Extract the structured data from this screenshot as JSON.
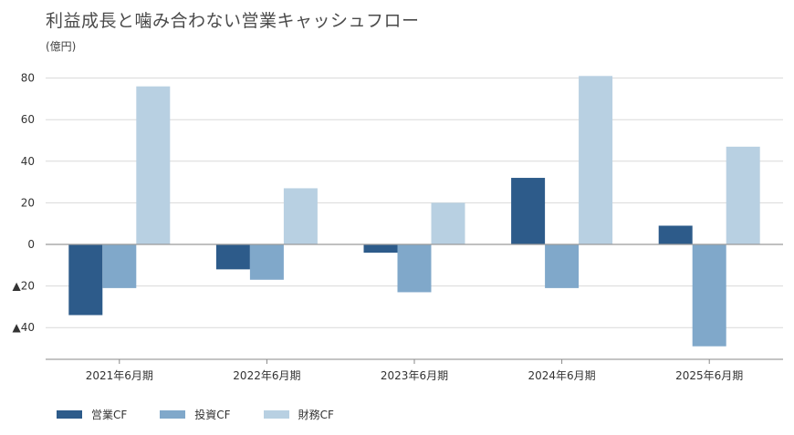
{
  "title": "利益成長と噛み合わない営業キャッシュフロー",
  "unit": "(億円)",
  "chart_data": {
    "type": "bar",
    "categories": [
      "2021年6月期",
      "2022年6月期",
      "2023年6月期",
      "2024年6月期",
      "2025年6月期"
    ],
    "series": [
      {
        "name": "営業CF",
        "values": [
          -34,
          -12,
          -4,
          32,
          9
        ],
        "color": "#2d5b8a"
      },
      {
        "name": "投資CF",
        "values": [
          -21,
          -17,
          -23,
          -21,
          -49
        ],
        "color": "#80a8ca"
      },
      {
        "name": "財務CF",
        "values": [
          76,
          27,
          20,
          81,
          47
        ],
        "color": "#b8d0e2"
      }
    ],
    "ylim": [
      -55,
      84
    ],
    "yticks": [
      80,
      60,
      40,
      20,
      0,
      -20,
      -40
    ],
    "ytick_labels": [
      "80",
      "60",
      "40",
      "20",
      "0",
      "▲20",
      "▲40"
    ],
    "grid": true,
    "legend_position": "bottom-left"
  }
}
